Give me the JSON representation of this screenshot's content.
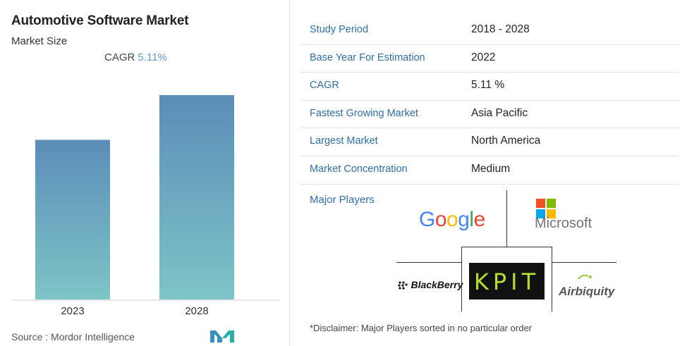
{
  "header": {
    "title": "Automotive Software Market",
    "subtitle": "Market Size",
    "cagr_label": "CAGR",
    "cagr_value": "5.11%"
  },
  "chart_data": {
    "type": "bar",
    "categories": [
      "2023",
      "2028"
    ],
    "values": [
      1.0,
      1.28
    ],
    "colors": {
      "top": "#5b8db8",
      "bottom": "#7ec4c7"
    }
  },
  "footer": {
    "source": "Source : Mordor Intelligence"
  },
  "table": [
    {
      "key": "Study Period",
      "value": "2018 - 2028"
    },
    {
      "key": "Base Year For Estimation",
      "value": "2022"
    },
    {
      "key": "CAGR",
      "value": "5.11 %"
    },
    {
      "key": "Fastest Growing Market",
      "value": "Asia Pacific"
    },
    {
      "key": "Largest Market",
      "value": "North America"
    },
    {
      "key": "Market Concentration",
      "value": "Medium"
    }
  ],
  "players": {
    "label": "Major Players",
    "google": "Google",
    "microsoft": "Microsoft",
    "blackberry": "BlackBerry",
    "kpit": "KPIT",
    "airbiquity": "Airbiquity"
  },
  "disclaimer": "*Disclaimer: Major Players sorted in no particular order"
}
